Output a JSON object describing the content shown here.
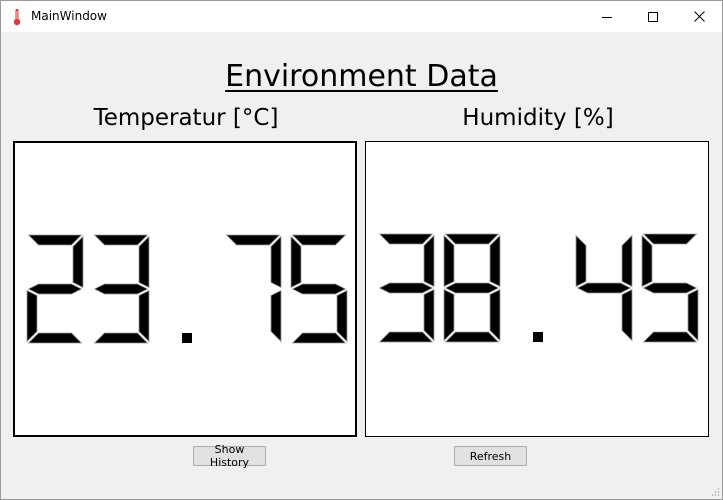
{
  "window": {
    "title": "MainWindow",
    "icon": "thermometer-icon",
    "controls": [
      "minimize-icon",
      "maximize-icon",
      "close-icon"
    ]
  },
  "heading": "Environment Data",
  "temperature": {
    "label": "Temperatur [°C]",
    "value": "23.75"
  },
  "humidity": {
    "label": "Humidity [%]",
    "value": "38.45"
  },
  "buttons": {
    "show_history": "Show History",
    "refresh": "Refresh"
  },
  "colors": {
    "lcd_segment": "#000000",
    "lcd_background": "#ffffff",
    "window_background": "#f0f0f0",
    "thermometer": "#d9363e"
  }
}
